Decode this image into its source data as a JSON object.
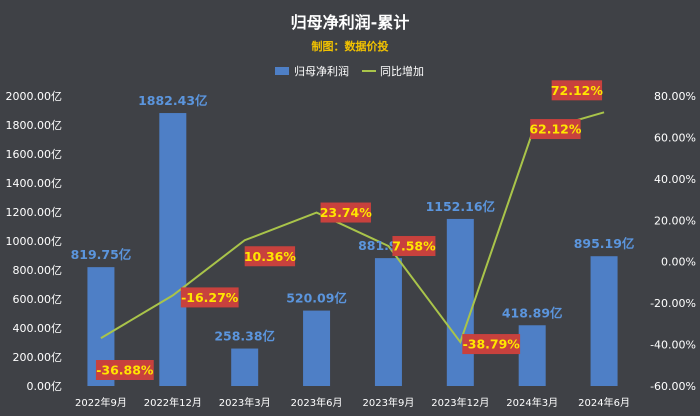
{
  "chart_data": {
    "type": "bar",
    "title": "归母净利润-累计",
    "subtitle": "制图：数据价投",
    "categories": [
      "2022年9月",
      "2022年12月",
      "2023年3月",
      "2023年6月",
      "2023年9月",
      "2023年12月",
      "2024年3月",
      "2024年6月"
    ],
    "series": [
      {
        "name": "归母净利润",
        "type": "bar",
        "axis": "left",
        "values": [
          819.75,
          1882.43,
          258.38,
          520.09,
          881.91,
          1152.16,
          418.89,
          895.19
        ],
        "labels": [
          "819.75亿",
          "1882.43亿",
          "258.38亿",
          "520.09亿",
          "881.91亿",
          "1152.16亿",
          "418.89亿",
          "895.19亿"
        ]
      },
      {
        "name": "同比增加",
        "type": "line",
        "axis": "right",
        "values": [
          -36.88,
          -16.27,
          10.36,
          23.74,
          7.58,
          -38.79,
          62.12,
          72.12
        ],
        "labels": [
          "-36.88%",
          "-16.27%",
          "10.36%",
          "23.74%",
          "7.58%",
          "-38.79%",
          "62.12%",
          "72.12%"
        ]
      }
    ],
    "y_left": {
      "min": 0,
      "max": 2000,
      "step": 200,
      "tick_labels": [
        "0.00亿",
        "200.00亿",
        "400.00亿",
        "600.00亿",
        "800.00亿",
        "1000.00亿",
        "1200.00亿",
        "1400.00亿",
        "1600.00亿",
        "1800.00亿",
        "2000.00亿"
      ]
    },
    "y_right": {
      "min": -60,
      "max": 80,
      "step": 20,
      "tick_labels": [
        "-60.00%",
        "-40.00%",
        "-20.00%",
        "0.00%",
        "20.00%",
        "40.00%",
        "60.00%",
        "80.00%"
      ]
    },
    "grid": false,
    "legend_position": "top-center",
    "colors": {
      "background": "#3f4146",
      "title": "#ffffff",
      "subtitle": "#f2c200",
      "bar": "#4e7fc6",
      "bar_label": "#5b95dd",
      "line": "#a9c44a",
      "line_label_bg": "#c8413d",
      "line_label_text": "#ffe600",
      "axis_text": "#ffffff"
    }
  }
}
